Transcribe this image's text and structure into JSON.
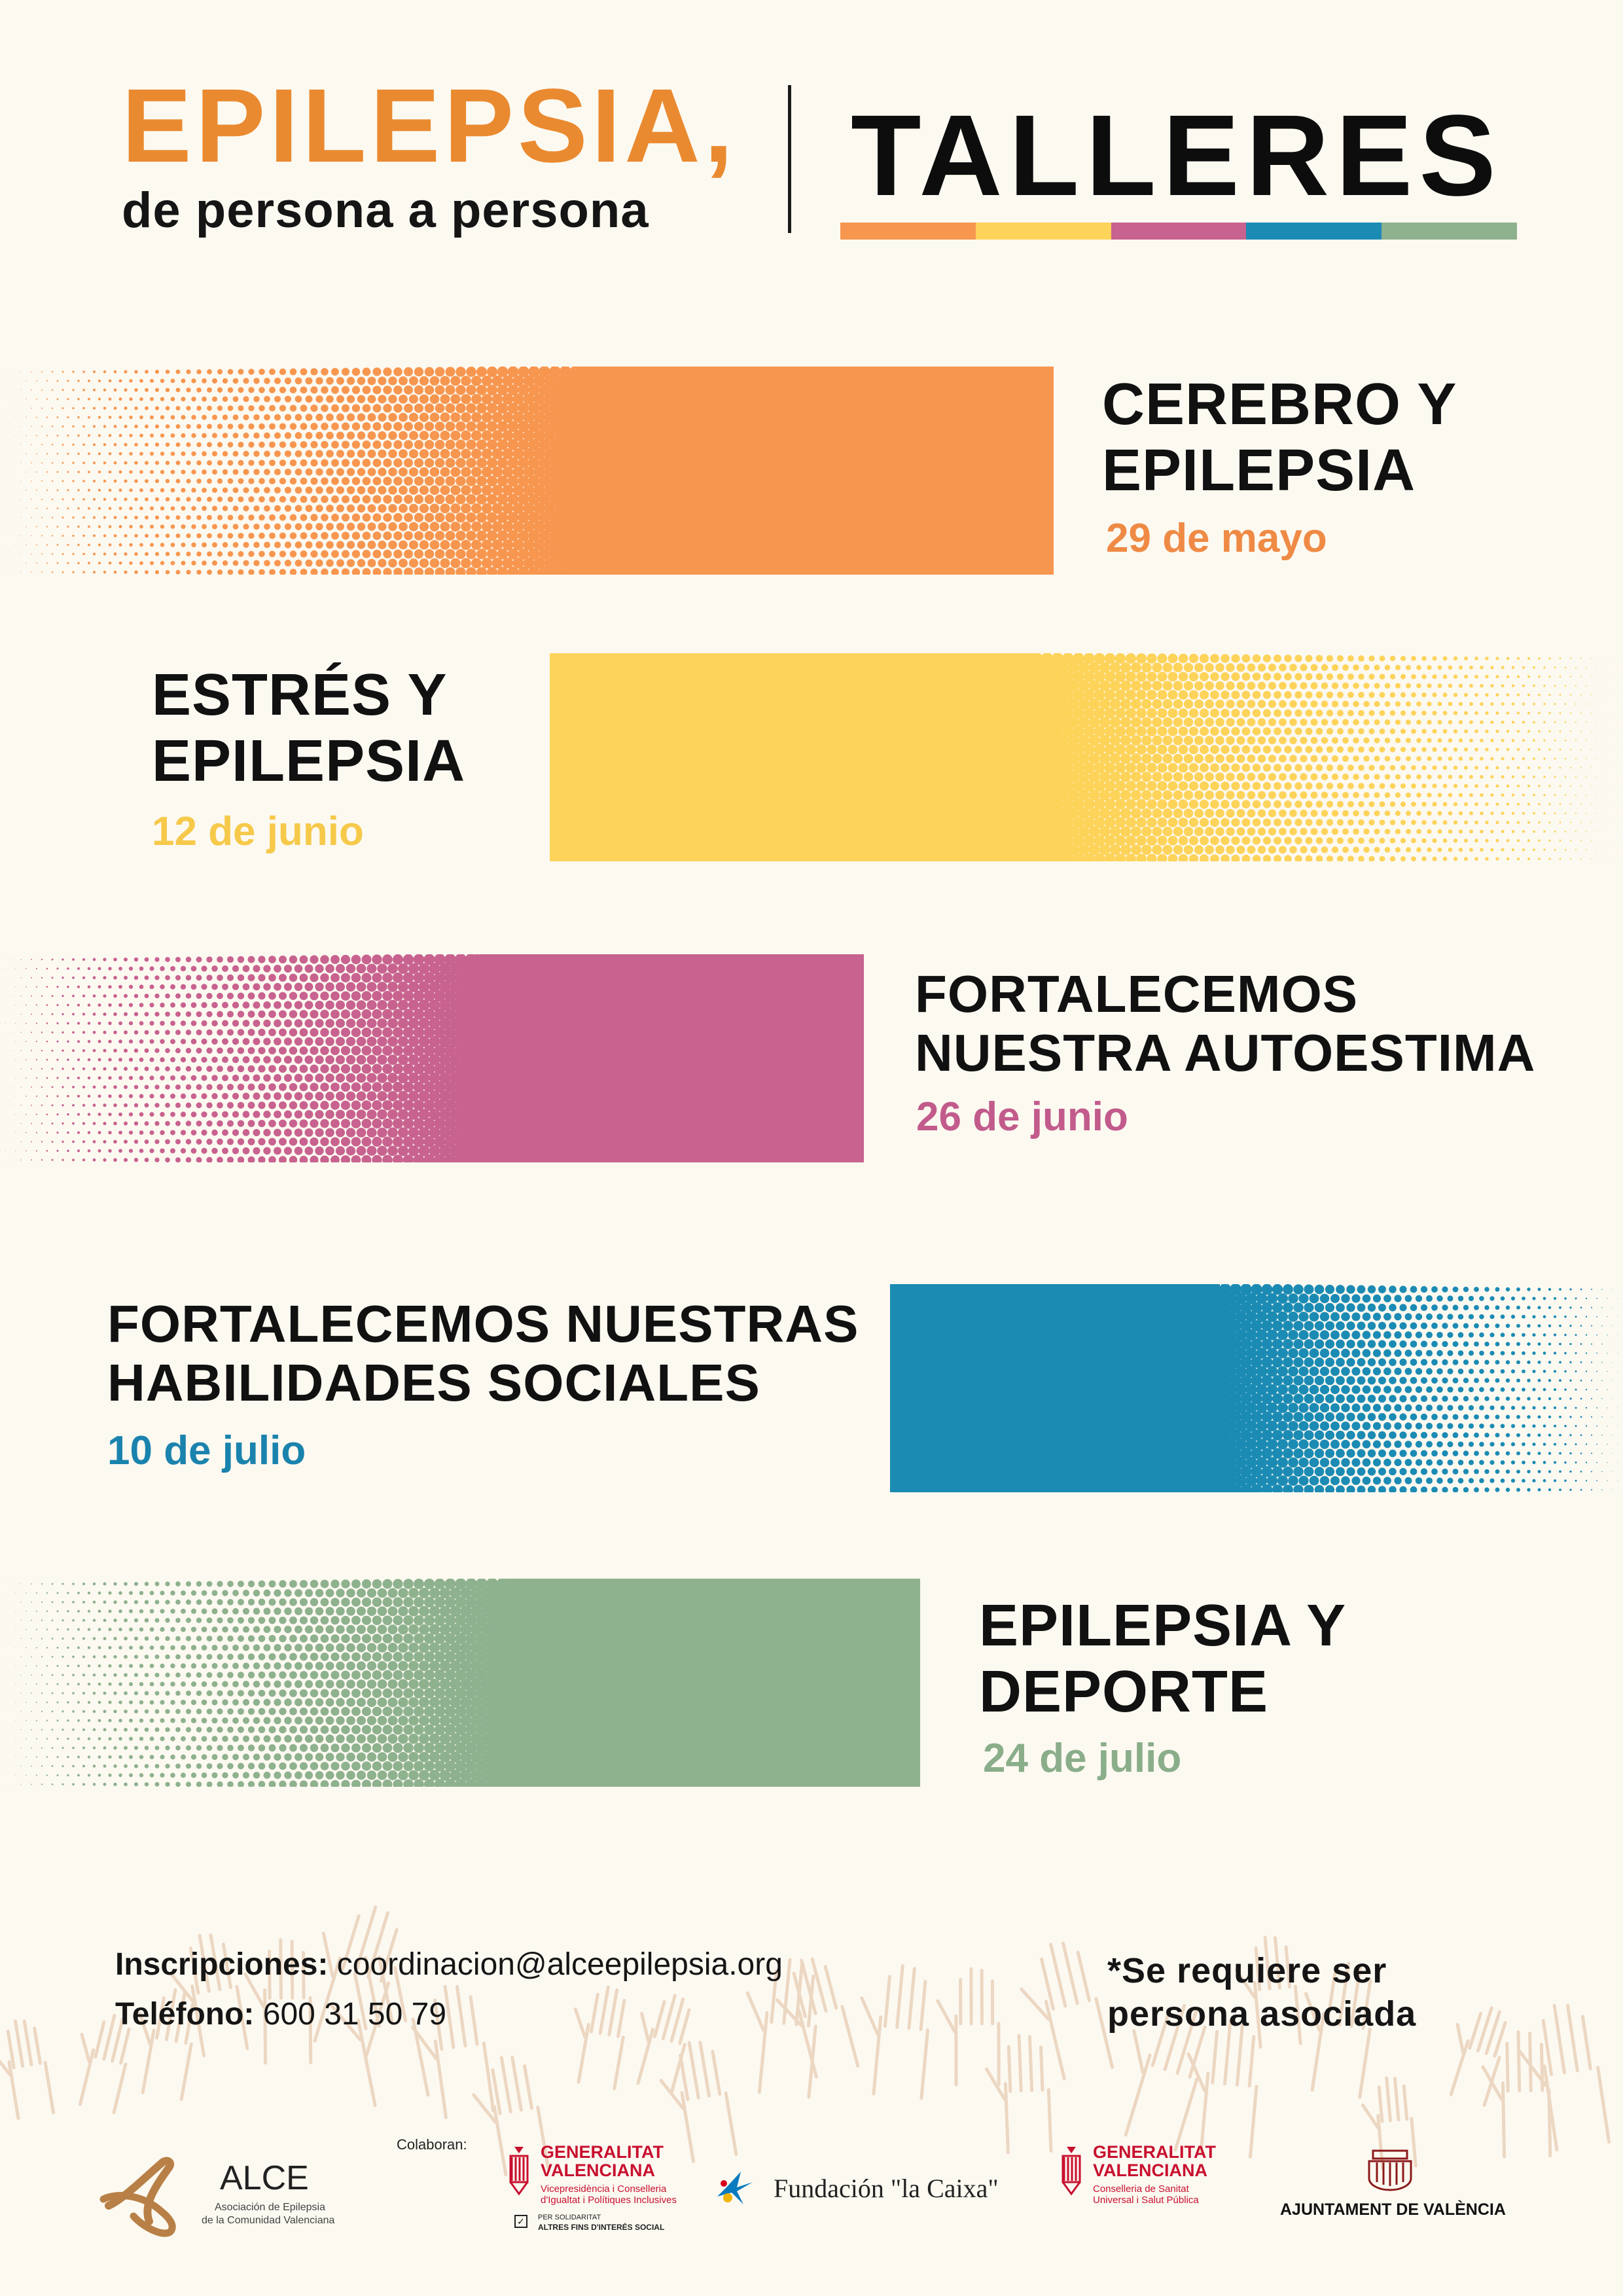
{
  "header": {
    "title": "EPILEPSIA,",
    "subtitle": "de persona a persona",
    "label": "TALLERES",
    "bar_colors": [
      "#f7964f",
      "#fdd35a",
      "#c8628f",
      "#1b8bb4",
      "#8eb18e"
    ]
  },
  "workshops": [
    {
      "title_line1": "CEREBRO Y",
      "title_line2": "EPILEPSIA",
      "date": "29 de mayo",
      "color": "#f7964f",
      "date_color": "#ef8a45"
    },
    {
      "title_line1": "ESTRÉS Y",
      "title_line2": "EPILEPSIA",
      "date": "12 de junio",
      "color": "#fdd35a",
      "date_color": "#f6c94a"
    },
    {
      "title_line1": "FORTALECEMOS",
      "title_line2": "NUESTRA AUTOESTIMA",
      "date": "26 de junio",
      "color": "#c8628f",
      "date_color": "#c25b8c"
    },
    {
      "title_line1": "FORTALECEMOS NUESTRAS",
      "title_line2": "HABILIDADES SOCIALES",
      "date": "10 de julio",
      "color": "#1b8bb4",
      "date_color": "#1a83ad"
    },
    {
      "title_line1": "EPILEPSIA Y",
      "title_line2": "DEPORTE",
      "date": "24 de julio",
      "color": "#8eb18e",
      "date_color": "#8aad8a"
    }
  ],
  "footer": {
    "inscripciones_label": "Inscripciones:",
    "email": "coordinacion@alceepilepsia.org",
    "telefono_label": "Teléfono:",
    "telefono": "600 31 50 79",
    "note_line1": "*Se requiere ser",
    "note_line2": "persona asociada"
  },
  "logos": {
    "alce_name": "ALCE",
    "alce_desc1": "Asociación de Epilepsia",
    "alce_desc2": "de la Comunidad Valenciana",
    "colaboran": "Colaboran:",
    "gv1_line1": "GENERALITAT",
    "gv1_line2": "VALENCIANA",
    "gv1_dept1": "Vicepresidència i Conselleria",
    "gv1_dept2": "d'Igualtat i Polítiques Inclusives",
    "solidaritat1": "PER SOLIDARITAT",
    "solidaritat2": "ALTRES FINS D'INTERÉS SOCIAL",
    "caixa": "Fundación \"la Caixa\"",
    "gv2_line1": "GENERALITAT",
    "gv2_line2": "VALENCIANA",
    "gv2_dept1": "Conselleria de Sanitat",
    "gv2_dept2": "Universal i Salut Pública",
    "ajuntament": "AJUNTAMENT DE VALÈNCIA"
  }
}
